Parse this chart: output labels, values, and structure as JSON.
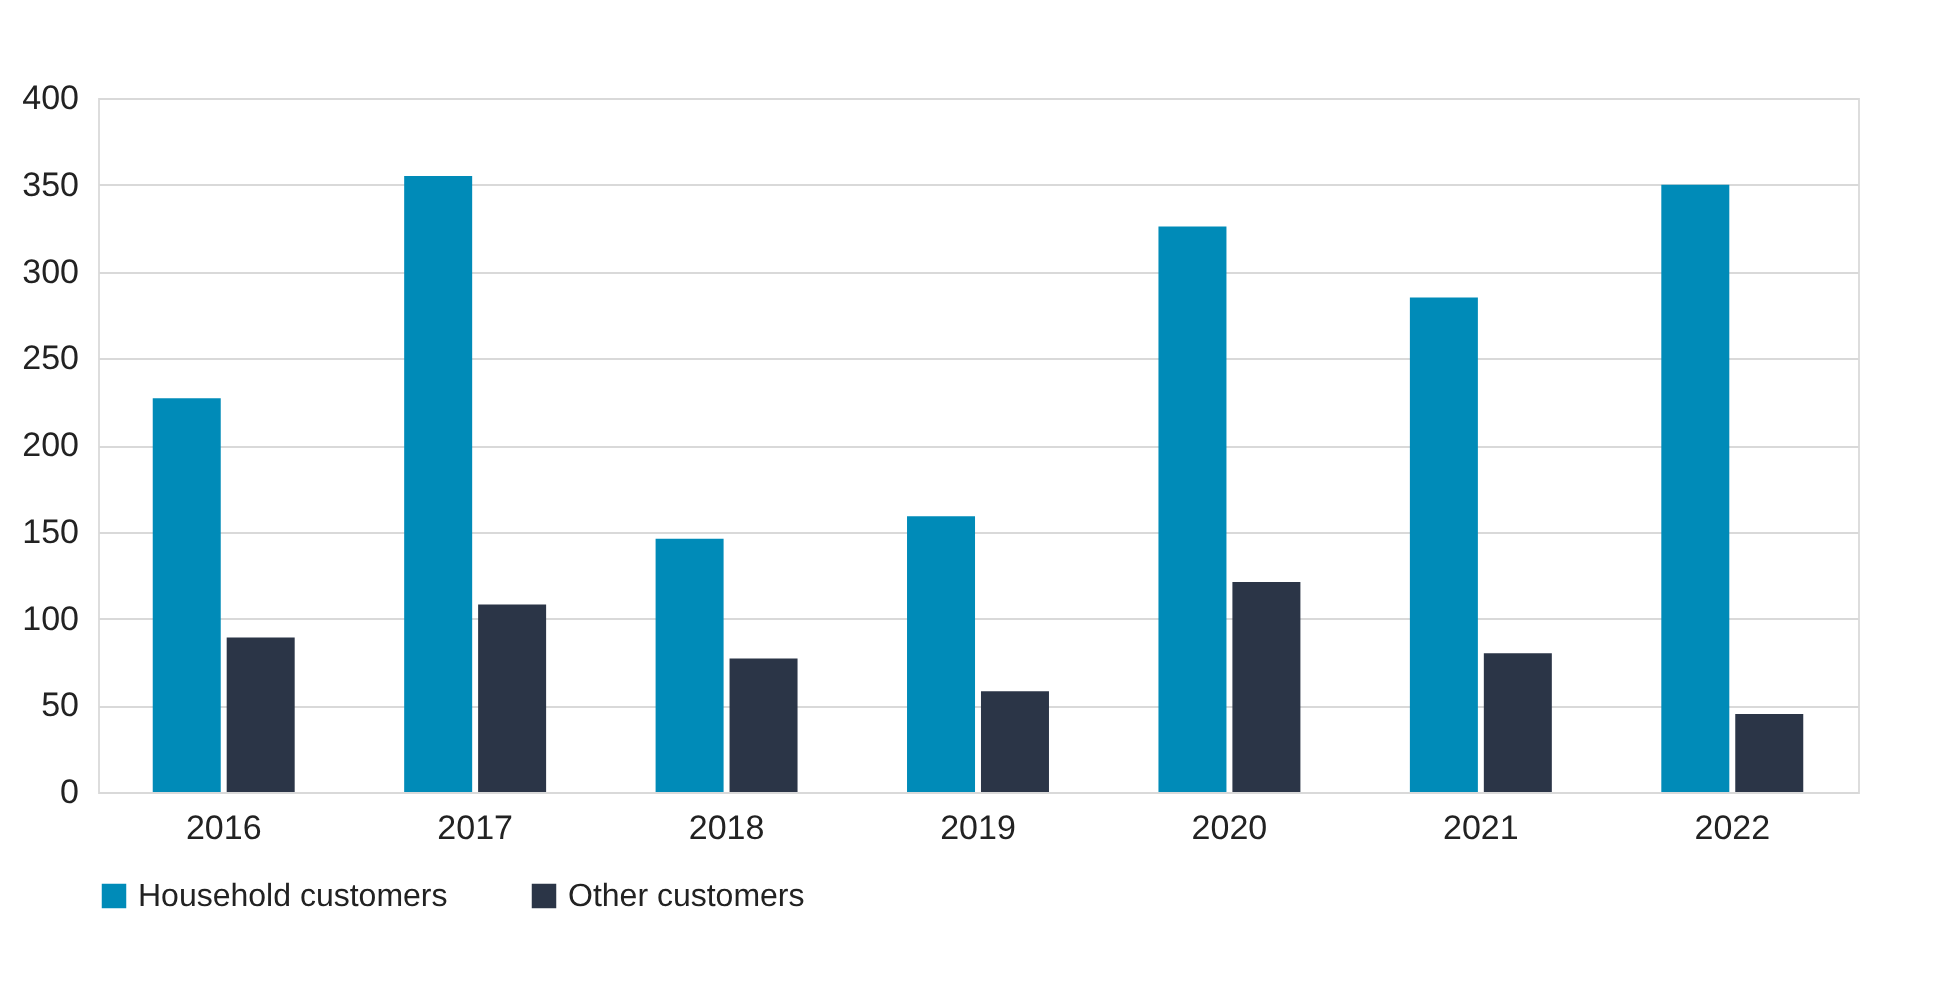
{
  "chart_data": {
    "type": "bar",
    "categories": [
      "2016",
      "2017",
      "2018",
      "2019",
      "2020",
      "2021",
      "2022"
    ],
    "series": [
      {
        "name": "Household customers",
        "color": "#008bb8",
        "values": [
          227,
          355,
          146,
          159,
          326,
          285,
          350
        ]
      },
      {
        "name": "Other customers",
        "color": "#2b3547",
        "values": [
          89,
          108,
          77,
          58,
          121,
          80,
          45
        ]
      }
    ],
    "ylim": [
      0,
      400
    ],
    "yticks": [
      0,
      50,
      100,
      150,
      200,
      250,
      300,
      350,
      400
    ],
    "grid": "y",
    "legend": "bottom"
  }
}
